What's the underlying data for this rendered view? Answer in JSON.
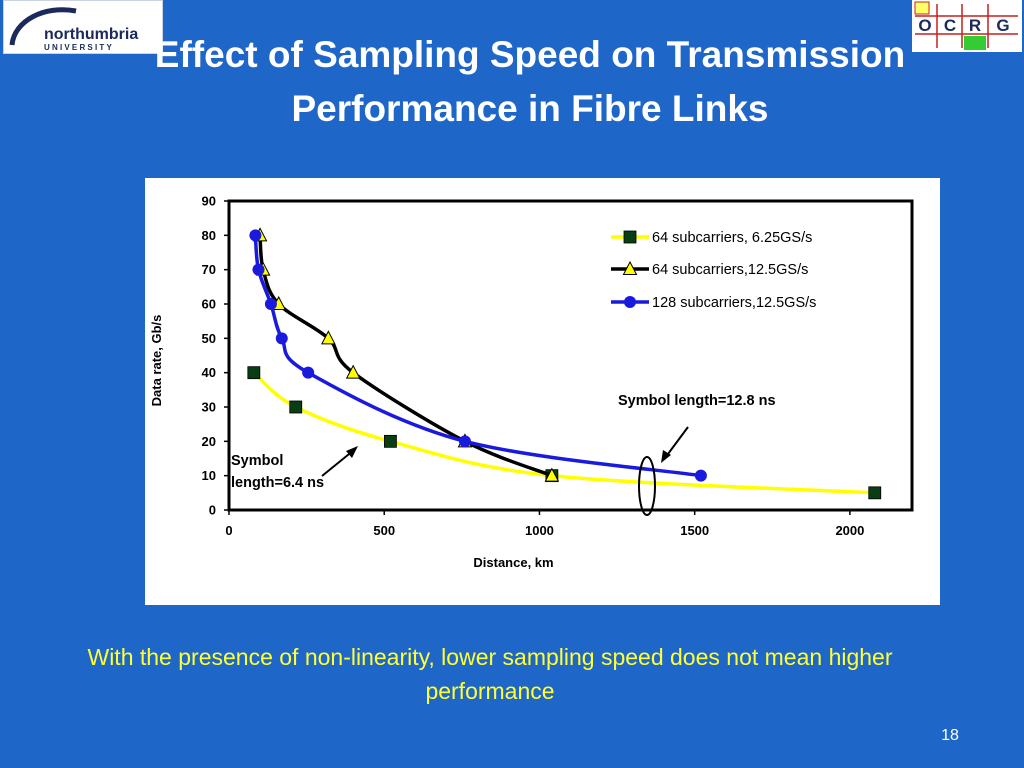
{
  "slide": {
    "title": "Effect of Sampling Speed on Transmission Performance in Fibre Links",
    "caption": "With the presence of non-linearity, lower sampling speed does not mean higher performance",
    "page_number": "18"
  },
  "logos": {
    "left": {
      "name_text": "northumbria",
      "sub_text": "UNIVERSITY",
      "colors": {
        "text": "#1b2a5a",
        "arc": "#1b2a5a"
      }
    },
    "right": {
      "letters": [
        "O",
        "C",
        "R",
        "G"
      ],
      "colors": {
        "frame": "#c8201d",
        "square_yellow": "#ffff66",
        "square_green": "#33cc33",
        "letters": "#1b2a5a"
      }
    }
  },
  "colors": {
    "background": "#1f66c9",
    "title": "#ffffff",
    "caption": "#ffff33",
    "series_yellow": "#ffff00",
    "series_black": "#000000",
    "series_blue": "#1a1adf",
    "marker_square": "#0b3d12"
  },
  "chart_data": {
    "type": "line",
    "title": "",
    "xlabel": "Distance, km",
    "ylabel": "Data rate, Gb/s",
    "xlim": [
      0,
      2200
    ],
    "ylim": [
      0,
      90
    ],
    "xticks": [
      0,
      500,
      1000,
      1500,
      2000
    ],
    "yticks": [
      0,
      10,
      20,
      30,
      40,
      50,
      60,
      70,
      80,
      90
    ],
    "xtick_labels": [
      "0",
      "500",
      "1000",
      "1500",
      "2000"
    ],
    "ytick_labels": [
      "0",
      "10",
      "20",
      "30",
      "40",
      "50",
      "60",
      "70",
      "80",
      "90"
    ],
    "grid": false,
    "legend_position": "top-right",
    "series": [
      {
        "name": "64 subcarriers, 6.25GS/s",
        "marker": "square",
        "color": "#ffff00",
        "marker_color": "#0b3d12",
        "x": [
          80,
          215,
          520,
          1040,
          2080
        ],
        "y": [
          40,
          30,
          20,
          10,
          5
        ]
      },
      {
        "name": "64 subcarriers,12.5GS/s",
        "marker": "triangle",
        "color": "#000000",
        "marker_color": "#ffff00",
        "x": [
          100,
          110,
          160,
          320,
          400,
          760,
          1040
        ],
        "y": [
          80,
          70,
          60,
          50,
          40,
          20,
          10
        ]
      },
      {
        "name": "128 subcarriers,12.5GS/s",
        "marker": "circle",
        "color": "#1a1adf",
        "marker_color": "#1a1adf",
        "x": [
          85,
          95,
          135,
          170,
          255,
          760,
          1520
        ],
        "y": [
          80,
          70,
          60,
          50,
          40,
          20,
          10
        ]
      }
    ],
    "annotations": [
      {
        "id": "symbol-6-4",
        "lines": [
          "Symbol",
          "length=6.4  ns"
        ]
      },
      {
        "id": "symbol-12-8",
        "lines": [
          "Symbol length=12.8  ns"
        ]
      }
    ]
  }
}
